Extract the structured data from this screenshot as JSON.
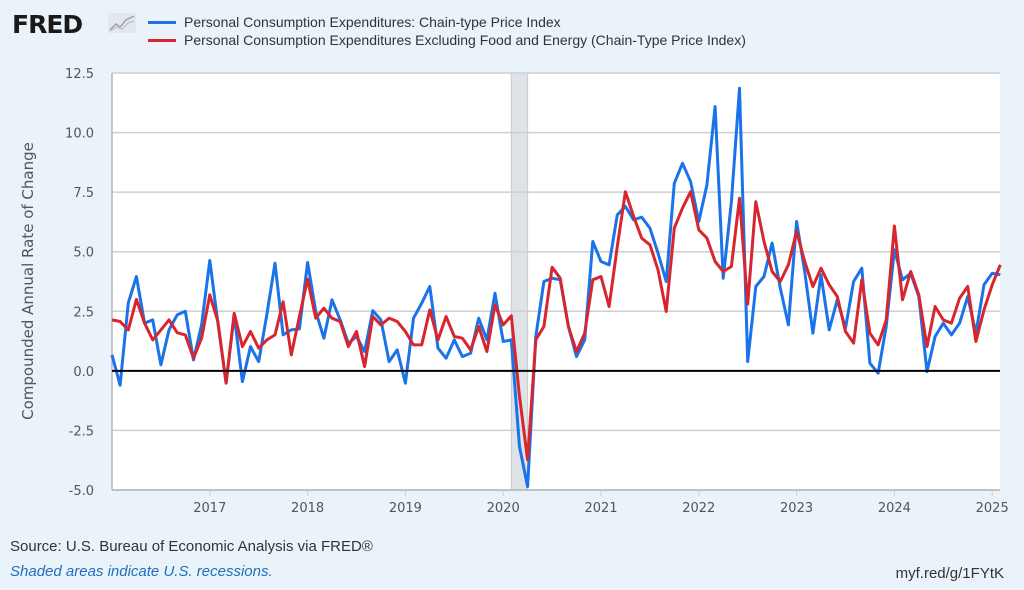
{
  "header": {
    "logo_text": "FRED",
    "logo_icon": "line-chart-icon"
  },
  "legend": [
    {
      "label": "Personal Consumption Expenditures: Chain-type Price Index",
      "color": "#1a73e8"
    },
    {
      "label": "Personal Consumption Expenditures Excluding Food and Energy (Chain-Type Price Index)",
      "color": "#d7262e"
    }
  ],
  "footer": {
    "source": "Source: U.S. Bureau of Economic Analysis via FRED®",
    "note": "Shaded areas indicate U.S. recessions.",
    "link": "myf.red/g/1FYtK"
  },
  "chart_data": {
    "type": "line",
    "title": "",
    "xlabel": "",
    "ylabel": "Compounded Annual Rate of Change",
    "ylim": [
      -5.0,
      12.5
    ],
    "yticks": [
      -5.0,
      -2.5,
      0.0,
      2.5,
      5.0,
      7.5,
      10.0,
      12.5
    ],
    "ytick_labels": [
      "-5.0",
      "-2.5",
      "0.0",
      "2.5",
      "5.0",
      "7.5",
      "10.0",
      "12.5"
    ],
    "xlim": [
      2016.0,
      2025.08
    ],
    "xticks": [
      2017,
      2018,
      2019,
      2020,
      2021,
      2022,
      2023,
      2024,
      2025
    ],
    "xtick_labels": [
      "2017",
      "2018",
      "2019",
      "2020",
      "2021",
      "2022",
      "2023",
      "2024",
      "2025"
    ],
    "x_start": "2016-01",
    "x_frequency": "monthly",
    "grid": true,
    "zero_line": true,
    "recessions": [
      {
        "start": 2020.083,
        "end": 2020.25
      }
    ],
    "legend_position": "top",
    "series": [
      {
        "name": "Personal Consumption Expenditures: Chain-type Price Index",
        "color": "#1a73e8",
        "values": [
          0.67,
          -0.6,
          2.85,
          3.96,
          2.0,
          2.14,
          0.25,
          1.72,
          2.35,
          2.5,
          0.46,
          1.93,
          4.63,
          2.0,
          -0.5,
          2.35,
          -0.45,
          1.02,
          0.39,
          2.35,
          4.52,
          1.51,
          1.72,
          1.76,
          4.55,
          2.5,
          1.37,
          2.98,
          2.14,
          1.16,
          1.44,
          0.81,
          2.53,
          2.14,
          0.39,
          0.88,
          -0.52,
          2.21,
          2.84,
          3.54,
          0.95,
          0.53,
          1.3,
          0.6,
          0.74,
          2.21,
          1.3,
          3.26,
          1.23,
          1.3,
          -3.18,
          -4.86,
          1.44,
          3.75,
          3.89,
          3.82,
          1.86,
          0.6,
          1.3,
          5.43,
          4.59,
          4.45,
          6.55,
          6.9,
          6.34,
          6.45,
          5.99,
          4.94,
          3.75,
          7.87,
          8.71,
          7.94,
          6.27,
          7.8,
          11.09,
          3.89,
          7.1,
          11.86,
          0.39,
          3.54,
          3.96,
          5.36,
          3.47,
          1.93,
          6.27,
          4.17,
          1.58,
          4.03,
          1.72,
          2.98,
          1.79,
          3.75,
          4.31,
          0.32,
          -0.1,
          1.86,
          5.08,
          3.82,
          4.1,
          3.12,
          -0.03,
          1.44,
          2.0,
          1.51,
          2.0,
          3.12,
          1.58,
          3.61,
          4.1,
          4.03
        ]
      },
      {
        "name": "Personal Consumption Expenditures Excluding Food and Energy (Chain-Type Price Index)",
        "color": "#d7262e",
        "values": [
          2.14,
          2.07,
          1.72,
          3.0,
          2.0,
          1.3,
          1.72,
          2.14,
          1.6,
          1.51,
          0.53,
          1.37,
          3.19,
          2.07,
          -0.52,
          2.42,
          1.02,
          1.65,
          0.95,
          1.3,
          1.51,
          2.9,
          0.67,
          2.28,
          3.85,
          2.21,
          2.63,
          2.21,
          2.07,
          1.02,
          1.65,
          0.18,
          2.28,
          1.93,
          2.21,
          2.07,
          1.65,
          1.09,
          1.09,
          2.56,
          1.3,
          2.28,
          1.44,
          1.37,
          0.88,
          1.86,
          0.81,
          2.77,
          1.93,
          2.31,
          -1.08,
          -3.73,
          1.3,
          1.86,
          4.35,
          3.89,
          1.86,
          0.81,
          1.58,
          3.82,
          3.96,
          2.7,
          5.22,
          7.52,
          6.48,
          5.57,
          5.29,
          4.24,
          2.49,
          5.99,
          6.83,
          7.52,
          5.92,
          5.57,
          4.59,
          4.17,
          4.38,
          7.24,
          2.8,
          7.1,
          5.43,
          4.17,
          3.75,
          4.45,
          5.85,
          4.59,
          3.54,
          4.31,
          3.61,
          3.12,
          1.65,
          1.16,
          3.82,
          1.58,
          1.09,
          2.14,
          6.08,
          2.98,
          4.17,
          3.19,
          1.02,
          2.7,
          2.14,
          2.0,
          3.05,
          3.54,
          1.23,
          2.56,
          3.61,
          4.45
        ]
      }
    ]
  }
}
